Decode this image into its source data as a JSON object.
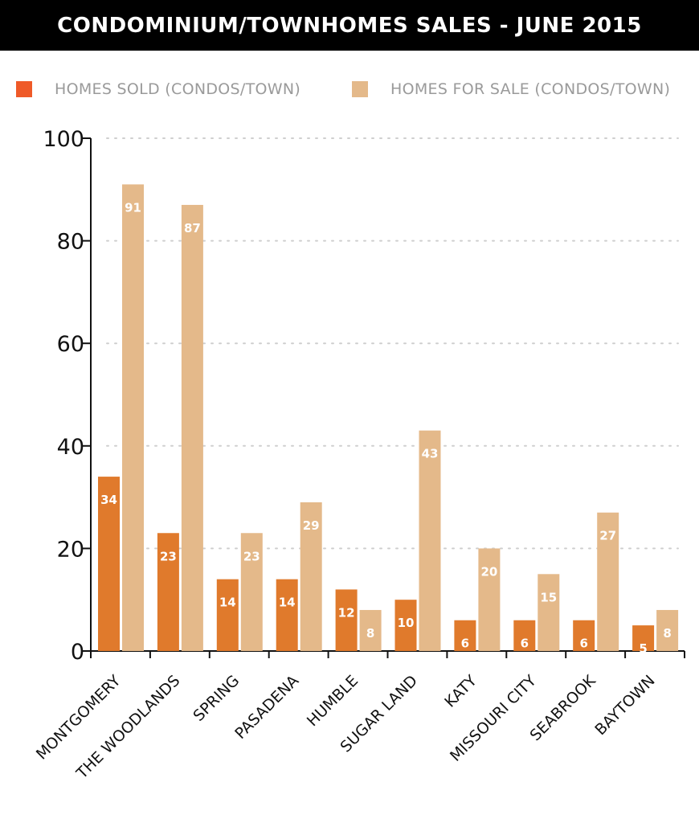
{
  "chart_data": {
    "type": "bar",
    "title": "CONDOMINIUM/TOWNHOMES SALES - JUNE 2015",
    "categories": [
      "MONTGOMERY",
      "THE WOODLANDS",
      "SPRING",
      "PASADENA",
      "HUMBLE",
      "SUGAR LAND",
      "KATY",
      "MISSOURI CITY",
      "SEABROOK",
      "BAYTOWN"
    ],
    "series": [
      {
        "name": "HOMES SOLD (CONDOS/TOWN)",
        "color": "#e07a2c",
        "values": [
          34,
          23,
          14,
          14,
          12,
          10,
          6,
          6,
          6,
          5
        ]
      },
      {
        "name": "HOMES FOR SALE (CONDOS/TOWN)",
        "color": "#e4b98a",
        "values": [
          91,
          87,
          23,
          29,
          8,
          43,
          20,
          15,
          27,
          8
        ]
      }
    ],
    "xlabel": "",
    "ylabel": "",
    "ylim": [
      0,
      100
    ],
    "yticks": [
      0,
      20,
      40,
      60,
      80,
      100
    ],
    "grid": true,
    "legend_position": "top",
    "data_labels": true
  },
  "legend_colors": {
    "sold": "#ef5a28",
    "for_sale": "#e4b98a"
  }
}
